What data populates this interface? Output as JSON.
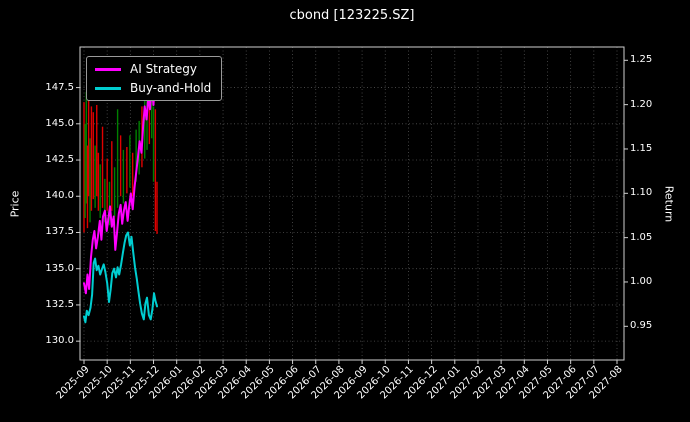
{
  "chart_data": {
    "type": "line",
    "title": "cbond [123225.SZ]",
    "ylabel_left": "Price",
    "ylabel_right": "Return",
    "legend_position": "upper-left",
    "grid": true,
    "background": "#000000",
    "text_color": "#ffffff",
    "colors": {
      "grid": "#4f4f4f",
      "tick": "#cfcfcf",
      "g": "#008000",
      "r": "#e00000"
    },
    "x_tick_labels": [
      "2025-09",
      "2025-10",
      "2025-11",
      "2025-12",
      "2026-01",
      "2026-02",
      "2026-03",
      "2026-04",
      "2026-05",
      "2026-06",
      "2026-07",
      "2026-08",
      "2026-09",
      "2026-10",
      "2026-11",
      "2026-12",
      "2027-01",
      "2027-02",
      "2027-03",
      "2027-04",
      "2027-05",
      "2027-06",
      "2027-07",
      "2027-08"
    ],
    "price_ticks": [
      "130.0",
      "132.5",
      "135.0",
      "137.5",
      "140.0",
      "142.5",
      "145.0",
      "147.5"
    ],
    "return_ticks": [
      "0.95",
      "1.00",
      "1.05",
      "1.10",
      "1.15",
      "1.20",
      "1.25"
    ],
    "price_ylim": [
      128.7,
      150.3
    ],
    "return_ylim": [
      0.912,
      1.265
    ],
    "series": [
      {
        "name": "AI Strategy",
        "color": "#ff00ff",
        "axis": "price",
        "x": [
          0.0,
          0.08,
          0.15,
          0.22,
          0.3,
          0.38,
          0.45,
          0.52,
          0.6,
          0.68,
          0.75,
          0.82,
          0.9,
          0.98,
          1.05,
          1.12,
          1.2,
          1.28,
          1.35,
          1.42,
          1.5,
          1.58,
          1.65,
          1.72,
          1.8,
          1.88,
          1.95,
          2.02,
          2.1,
          2.18,
          2.25,
          2.32,
          2.4,
          2.48,
          2.55,
          2.62,
          2.7,
          2.78,
          2.85,
          2.92,
          3.0,
          3.05,
          3.1,
          3.15
        ],
        "y": [
          134.0,
          133.3,
          134.6,
          133.6,
          135.8,
          137.0,
          137.6,
          136.4,
          137.2,
          138.3,
          137.0,
          138.6,
          139.0,
          137.6,
          138.4,
          139.3,
          137.9,
          138.6,
          136.3,
          137.4,
          138.8,
          139.4,
          138.1,
          139.0,
          139.6,
          138.3,
          139.3,
          140.2,
          139.1,
          140.6,
          141.6,
          142.6,
          143.8,
          143.0,
          144.8,
          146.2,
          145.3,
          147.0,
          146.0,
          147.6,
          146.3,
          147.9,
          146.8,
          147.3
        ]
      },
      {
        "name": "Buy-and-Hold",
        "color": "#00ced1",
        "axis": "return",
        "x": [
          0.0,
          0.06,
          0.12,
          0.2,
          0.28,
          0.35,
          0.42,
          0.48,
          0.55,
          0.62,
          0.7,
          0.78,
          0.85,
          0.92,
          1.0,
          1.08,
          1.15,
          1.22,
          1.3,
          1.38,
          1.45,
          1.52,
          1.6,
          1.68,
          1.75,
          1.82,
          1.9,
          1.98,
          2.05,
          2.12,
          2.2,
          2.28,
          2.35,
          2.42,
          2.5,
          2.58,
          2.65,
          2.72,
          2.8,
          2.88,
          2.95,
          3.02,
          3.08,
          3.15
        ],
        "y": [
          131.7,
          131.3,
          132.1,
          131.8,
          132.3,
          133.2,
          135.4,
          135.7,
          134.9,
          135.2,
          134.6,
          135.0,
          135.3,
          134.8,
          134.0,
          132.7,
          133.6,
          134.7,
          135.0,
          134.4,
          135.1,
          134.6,
          135.3,
          136.1,
          136.8,
          137.3,
          137.5,
          136.6,
          137.2,
          136.2,
          135.1,
          134.3,
          133.4,
          132.6,
          131.9,
          131.5,
          132.6,
          133.0,
          131.8,
          131.5,
          132.2,
          133.3,
          132.8,
          132.4
        ]
      }
    ],
    "range_bars": [
      [
        0.0,
        137.5,
        146.5,
        "r"
      ],
      [
        0.05,
        138.5,
        145.0,
        "g"
      ],
      [
        0.1,
        139.5,
        147.2,
        "g"
      ],
      [
        0.15,
        137.8,
        143.5,
        "r"
      ],
      [
        0.2,
        140.0,
        147.4,
        "r"
      ],
      [
        0.26,
        138.2,
        144.0,
        "g"
      ],
      [
        0.32,
        139.0,
        146.2,
        "r"
      ],
      [
        0.4,
        139.8,
        145.8,
        "r"
      ],
      [
        0.48,
        139.2,
        143.5,
        "g"
      ],
      [
        0.55,
        140.0,
        146.3,
        "r"
      ],
      [
        0.62,
        139.0,
        143.0,
        "r"
      ],
      [
        0.7,
        138.5,
        142.2,
        "g"
      ],
      [
        0.8,
        139.2,
        144.8,
        "r"
      ],
      [
        0.9,
        138.2,
        141.2,
        "g"
      ],
      [
        1.0,
        139.0,
        142.6,
        "r"
      ],
      [
        1.1,
        138.0,
        141.0,
        "g"
      ],
      [
        1.2,
        139.0,
        143.8,
        "r"
      ],
      [
        1.32,
        138.6,
        142.0,
        "g"
      ],
      [
        1.45,
        139.2,
        146.0,
        "g"
      ],
      [
        1.58,
        140.0,
        144.2,
        "r"
      ],
      [
        1.7,
        139.5,
        143.2,
        "g"
      ],
      [
        1.85,
        140.2,
        143.4,
        "r"
      ],
      [
        1.98,
        140.6,
        144.2,
        "g"
      ],
      [
        2.1,
        140.0,
        143.0,
        "r"
      ],
      [
        2.25,
        141.0,
        144.6,
        "g"
      ],
      [
        2.38,
        141.5,
        145.2,
        "g"
      ],
      [
        2.5,
        142.0,
        146.2,
        "r"
      ],
      [
        2.62,
        142.6,
        147.0,
        "g"
      ],
      [
        2.72,
        143.2,
        146.6,
        "g"
      ],
      [
        2.82,
        143.6,
        147.4,
        "r"
      ],
      [
        2.92,
        144.0,
        147.0,
        "g"
      ],
      [
        3.0,
        141.0,
        146.2,
        "g"
      ],
      [
        3.08,
        137.6,
        146.0,
        "r"
      ],
      [
        3.15,
        137.4,
        141.0,
        "r"
      ]
    ]
  }
}
